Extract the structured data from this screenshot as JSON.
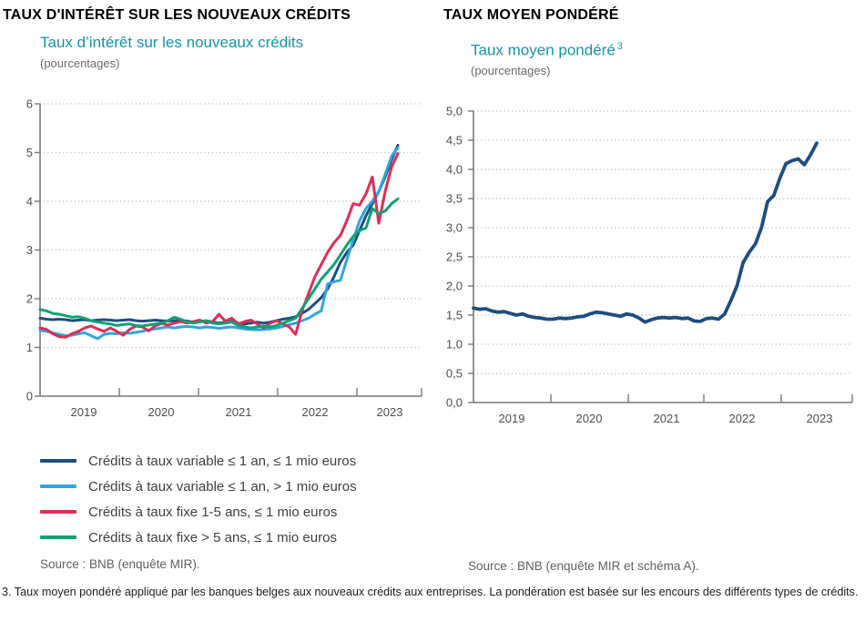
{
  "header": {
    "title_left": "TAUX D'INTÉRÊT SUR LES NOUVEAUX CRÉDITS",
    "title_right": "TAUX MOYEN PONDÉRÉ"
  },
  "left_panel": {
    "subtitle": "Taux d’intérêt sur les nouveaux crédits",
    "unit_label": "(pourcentages)",
    "source": "Source : BNB (enquête MIR)."
  },
  "right_panel": {
    "subtitle": "Taux moyen pondéré",
    "subtitle_sup": "3",
    "unit_label": "(pourcentages)",
    "source": "Source : BNB (enquête MIR et schéma A)."
  },
  "footnote": "3. Taux moyen pondéré appliqué par les banques belges aux nouveaux crédits aux entreprises. La pondération est basée sur les encours des différents types de crédits.",
  "colors": {
    "navy": "#1d4e7f",
    "light_blue": "#31a5dc",
    "red": "#dd2e56",
    "green": "#10a173",
    "teal_subtitle": "#1494ab",
    "axis_gray": "#787878",
    "grid_gray": "#bbbbbb",
    "tick_label_gray": "#4d4d4d"
  },
  "chart_data": [
    {
      "type": "line",
      "title": "Taux d'intérêt sur les nouveaux crédits",
      "ylabel": "pourcentages",
      "ylim": [
        0,
        6
      ],
      "ytick_values": [
        0,
        1,
        2,
        3,
        4,
        5,
        6
      ],
      "ytick_labels": [
        "0",
        "1",
        "2",
        "3",
        "4",
        "5",
        "6"
      ],
      "xtick_labels": [
        "2019",
        "2020",
        "2021",
        "2022",
        "2023"
      ],
      "x_range": "monthly, Jan 2019 – mid 2023",
      "grid": "horizontal dotted",
      "legend_position": "below-left",
      "series": [
        {
          "name": "Crédits à taux variable ≤ 1 an, ≤ 1 mio euros",
          "color": "#1d4e7f",
          "values": [
            1.6,
            1.58,
            1.57,
            1.58,
            1.57,
            1.55,
            1.56,
            1.57,
            1.55,
            1.56,
            1.57,
            1.56,
            1.55,
            1.56,
            1.57,
            1.55,
            1.54,
            1.55,
            1.56,
            1.55,
            1.54,
            1.55,
            1.56,
            1.54,
            1.52,
            1.53,
            1.55,
            1.52,
            1.5,
            1.52,
            1.53,
            1.5,
            1.48,
            1.5,
            1.52,
            1.5,
            1.52,
            1.55,
            1.58,
            1.6,
            1.63,
            1.7,
            1.78,
            1.9,
            2.02,
            2.2,
            2.45,
            2.75,
            2.95,
            3.1,
            3.4,
            3.7,
            3.95,
            4.2,
            4.5,
            4.85,
            5.15
          ]
        },
        {
          "name": "Crédits à taux variable ≤ 1 an, > 1 mio euros",
          "color": "#31a5dc",
          "values": [
            1.35,
            1.33,
            1.3,
            1.27,
            1.24,
            1.25,
            1.28,
            1.3,
            1.24,
            1.18,
            1.27,
            1.29,
            1.28,
            1.3,
            1.29,
            1.31,
            1.33,
            1.36,
            1.38,
            1.4,
            1.42,
            1.4,
            1.42,
            1.43,
            1.42,
            1.4,
            1.42,
            1.41,
            1.39,
            1.41,
            1.42,
            1.4,
            1.38,
            1.37,
            1.36,
            1.37,
            1.38,
            1.4,
            1.43,
            1.47,
            1.5,
            1.55,
            1.6,
            1.68,
            1.75,
            2.3,
            2.35,
            2.38,
            2.8,
            3.2,
            3.6,
            3.85,
            4.0,
            4.2,
            4.55,
            4.92,
            5.1
          ]
        },
        {
          "name": "Crédits à taux fixe 1-5 ans, ≤ 1 mio euros",
          "color": "#dd2e56",
          "values": [
            1.4,
            1.37,
            1.28,
            1.22,
            1.21,
            1.28,
            1.33,
            1.4,
            1.44,
            1.38,
            1.33,
            1.4,
            1.33,
            1.25,
            1.37,
            1.44,
            1.42,
            1.34,
            1.44,
            1.49,
            1.46,
            1.5,
            1.53,
            1.5,
            1.53,
            1.56,
            1.5,
            1.53,
            1.68,
            1.54,
            1.6,
            1.48,
            1.53,
            1.56,
            1.48,
            1.4,
            1.5,
            1.55,
            1.48,
            1.42,
            1.27,
            1.75,
            2.1,
            2.45,
            2.7,
            2.95,
            3.15,
            3.3,
            3.6,
            3.95,
            3.92,
            4.15,
            4.5,
            3.55,
            4.2,
            4.7,
            4.98
          ]
        },
        {
          "name": "Crédits à taux fixe > 5 ans, ≤ 1 mio euros",
          "color": "#10a173",
          "values": [
            1.78,
            1.75,
            1.7,
            1.68,
            1.65,
            1.62,
            1.63,
            1.6,
            1.55,
            1.52,
            1.5,
            1.48,
            1.45,
            1.47,
            1.48,
            1.45,
            1.44,
            1.46,
            1.48,
            1.5,
            1.55,
            1.62,
            1.58,
            1.52,
            1.5,
            1.52,
            1.55,
            1.5,
            1.48,
            1.5,
            1.52,
            1.45,
            1.42,
            1.4,
            1.42,
            1.44,
            1.42,
            1.45,
            1.5,
            1.55,
            1.6,
            1.8,
            2.0,
            2.2,
            2.4,
            2.55,
            2.7,
            2.9,
            3.1,
            3.28,
            3.4,
            3.45,
            3.85,
            3.75,
            3.8,
            3.95,
            4.05
          ]
        }
      ]
    },
    {
      "type": "line",
      "title": "Taux moyen pondéré",
      "ylabel": "pourcentages",
      "ylim": [
        0,
        5
      ],
      "ytick_values": [
        0,
        0.5,
        1,
        1.5,
        2,
        2.5,
        3,
        3.5,
        4,
        4.5,
        5
      ],
      "ytick_labels": [
        "0,0",
        "0,5",
        "1,0",
        "1,5",
        "2,0",
        "2,5",
        "3,0",
        "3,5",
        "4,0",
        "4,5",
        "5,0"
      ],
      "xtick_labels": [
        "2019",
        "2020",
        "2021",
        "2022",
        "2023"
      ],
      "x_range": "monthly, Jan 2019 – mid 2023",
      "grid": "horizontal dotted",
      "legend_position": "none",
      "series": [
        {
          "name": "Taux moyen pondéré",
          "color": "#1d4e7f",
          "values": [
            1.62,
            1.6,
            1.61,
            1.57,
            1.55,
            1.56,
            1.53,
            1.5,
            1.52,
            1.48,
            1.46,
            1.45,
            1.43,
            1.43,
            1.45,
            1.44,
            1.45,
            1.47,
            1.48,
            1.52,
            1.55,
            1.54,
            1.52,
            1.5,
            1.48,
            1.52,
            1.5,
            1.45,
            1.38,
            1.42,
            1.45,
            1.46,
            1.45,
            1.46,
            1.44,
            1.45,
            1.4,
            1.39,
            1.44,
            1.45,
            1.43,
            1.52,
            1.75,
            2.0,
            2.4,
            2.58,
            2.72,
            3.0,
            3.45,
            3.55,
            3.85,
            4.1,
            4.15,
            4.18,
            4.08,
            4.25,
            4.45
          ]
        }
      ]
    }
  ]
}
